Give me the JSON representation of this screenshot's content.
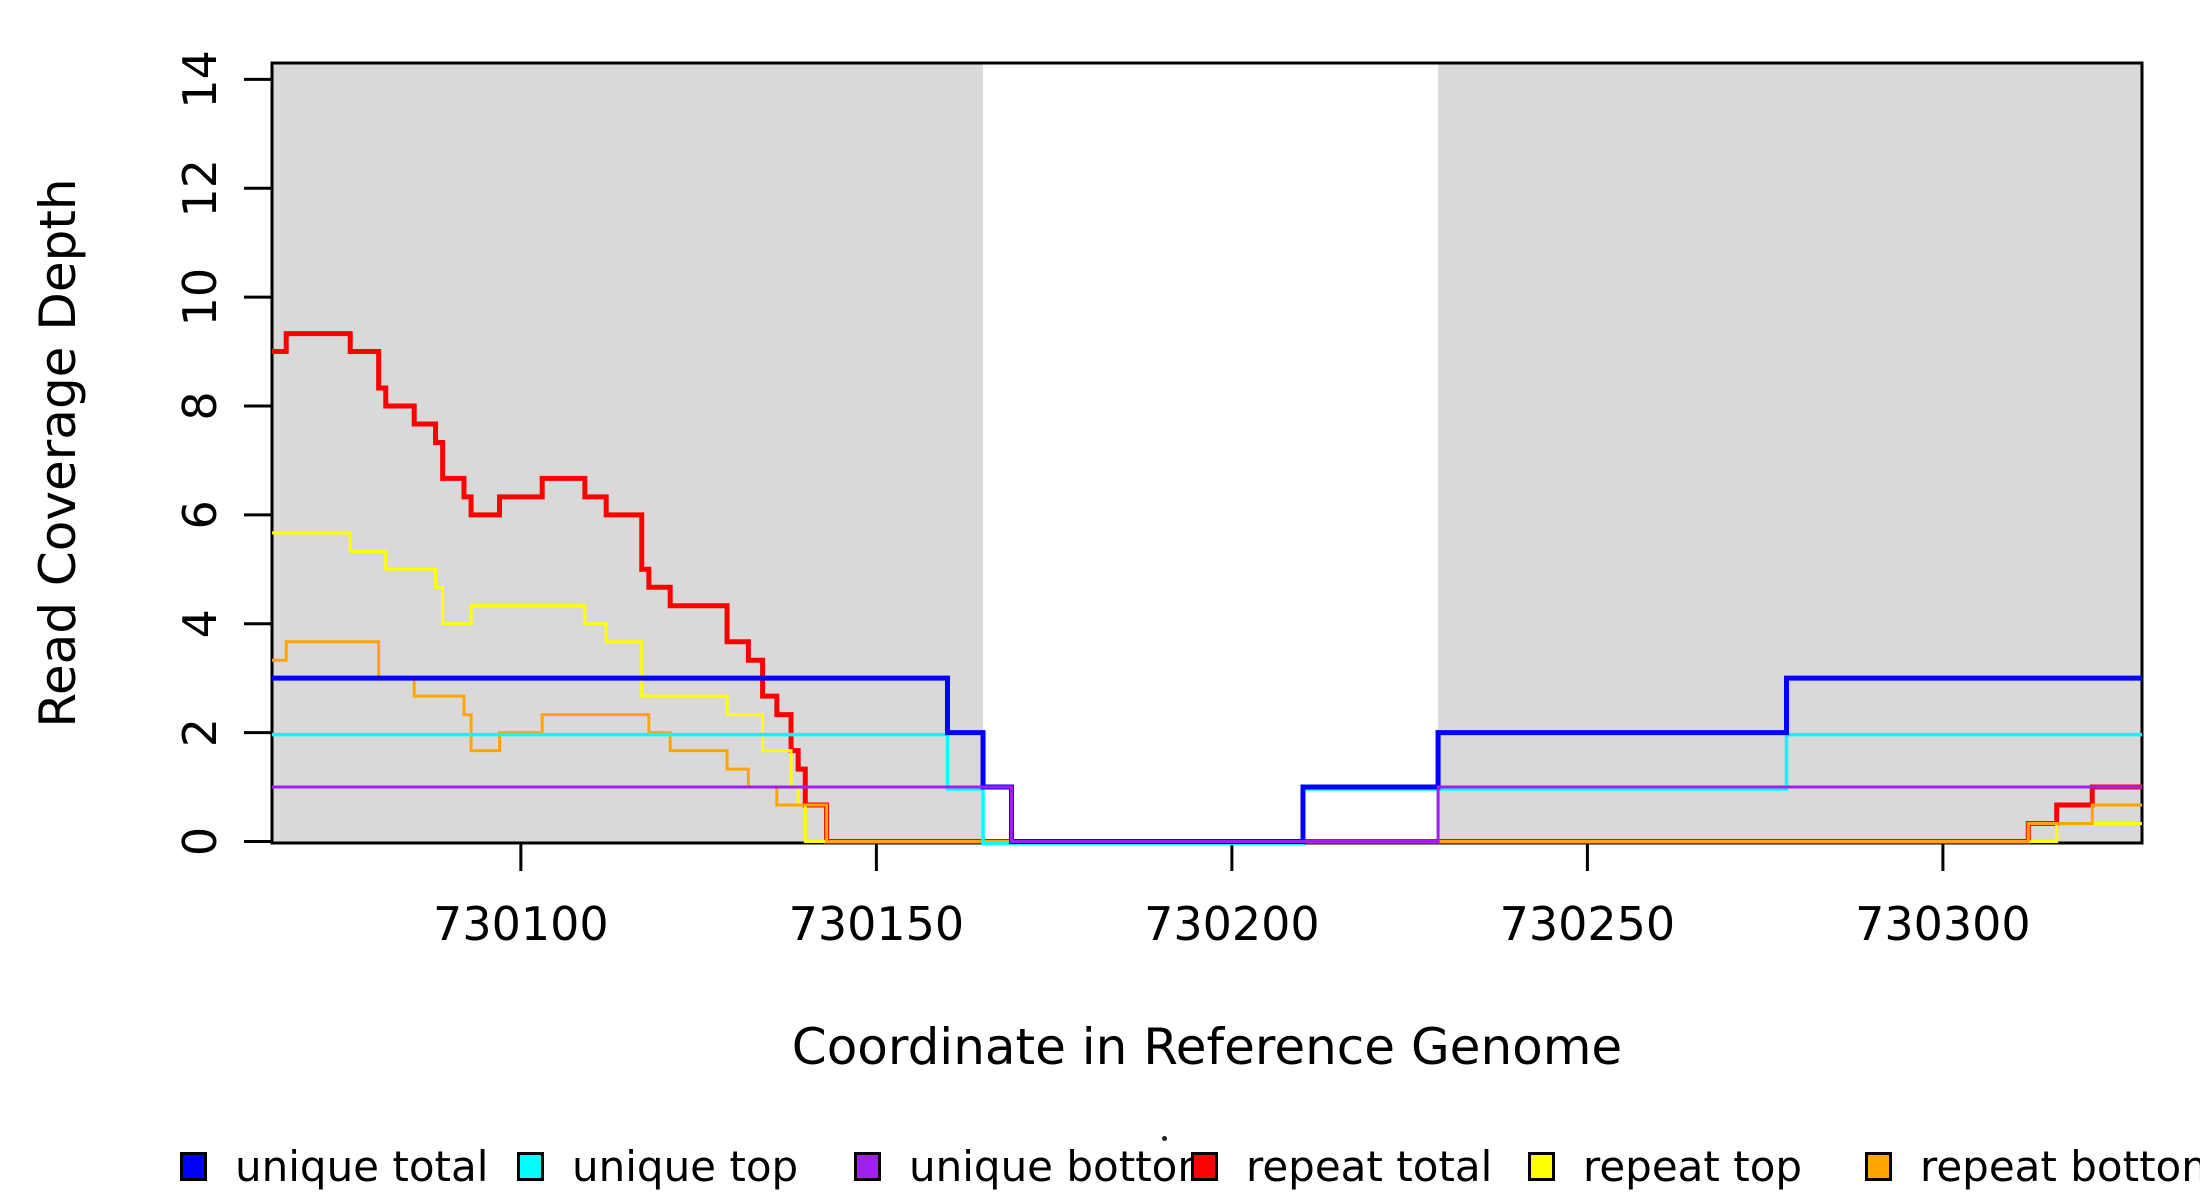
{
  "chart_data": {
    "type": "line",
    "subtype": "step-coverage-plot",
    "title": "",
    "xlabel": "Coordinate in Reference Genome",
    "ylabel": "Read Coverage Depth",
    "xlim": [
      730065,
      730328
    ],
    "ylim": [
      0,
      14.3
    ],
    "x_ticks": [
      {
        "value": 730100,
        "label": "730100"
      },
      {
        "value": 730150,
        "label": "730150"
      },
      {
        "value": 730200,
        "label": "730200"
      },
      {
        "value": 730250,
        "label": "730250"
      },
      {
        "value": 730300,
        "label": "730300"
      }
    ],
    "y_ticks": [
      {
        "value": 0,
        "label": "0"
      },
      {
        "value": 2,
        "label": "2"
      },
      {
        "value": 4,
        "label": "4"
      },
      {
        "value": 6,
        "label": "6"
      },
      {
        "value": 8,
        "label": "8"
      },
      {
        "value": 10,
        "label": "10"
      },
      {
        "value": 12,
        "label": "12"
      },
      {
        "value": 14,
        "label": "14"
      }
    ],
    "grid": "off",
    "shade_color": "#D9D9D9",
    "shaded_regions": [
      {
        "x_start": 730065,
        "x_end": 730165
      },
      {
        "x_start": 730229,
        "x_end": 730328
      }
    ],
    "series": [
      {
        "name": "repeat total",
        "color": "#FF0000",
        "line_width": 5,
        "steps": [
          [
            730065,
            9
          ],
          [
            730067,
            9.33
          ],
          [
            730076,
            9
          ],
          [
            730080,
            8.33
          ],
          [
            730081,
            8
          ],
          [
            730085,
            7.67
          ],
          [
            730088,
            7.33
          ],
          [
            730089,
            6.67
          ],
          [
            730092,
            6.33
          ],
          [
            730093,
            6
          ],
          [
            730097,
            6.33
          ],
          [
            730103,
            6.67
          ],
          [
            730109,
            6.33
          ],
          [
            730112,
            6
          ],
          [
            730117,
            5
          ],
          [
            730118,
            4.67
          ],
          [
            730121,
            4.33
          ],
          [
            730129,
            3.67
          ],
          [
            730132,
            3.33
          ],
          [
            730134,
            2.67
          ],
          [
            730136,
            2.33
          ],
          [
            730138,
            1.67
          ],
          [
            730139,
            1.33
          ],
          [
            730140,
            0.67
          ],
          [
            730143,
            0
          ],
          [
            730312,
            0.33
          ],
          [
            730316,
            0.67
          ],
          [
            730321,
            1
          ]
        ]
      },
      {
        "name": "repeat top",
        "color": "#FFFF00",
        "line_width": 3,
        "steps": [
          [
            730065,
            5.67
          ],
          [
            730076,
            5.33
          ],
          [
            730081,
            5
          ],
          [
            730088,
            4.67
          ],
          [
            730089,
            4
          ],
          [
            730093,
            4.33
          ],
          [
            730109,
            4
          ],
          [
            730112,
            3.67
          ],
          [
            730117,
            2.67
          ],
          [
            730129,
            2.33
          ],
          [
            730134,
            1.67
          ],
          [
            730138,
            1
          ],
          [
            730139,
            0.67
          ],
          [
            730140,
            0
          ],
          [
            730316,
            0.33
          ]
        ]
      },
      {
        "name": "repeat bottom",
        "color": "#FFA500",
        "line_width": 3,
        "steps": [
          [
            730065,
            3.33
          ],
          [
            730067,
            3.67
          ],
          [
            730080,
            3
          ],
          [
            730085,
            2.67
          ],
          [
            730092,
            2.33
          ],
          [
            730093,
            1.67
          ],
          [
            730097,
            2
          ],
          [
            730103,
            2.33
          ],
          [
            730118,
            2
          ],
          [
            730121,
            1.67
          ],
          [
            730129,
            1.33
          ],
          [
            730132,
            1
          ],
          [
            730136,
            0.67
          ],
          [
            730143,
            0
          ],
          [
            730312,
            0.33
          ],
          [
            730321,
            0.67
          ]
        ]
      },
      {
        "name": "unique top",
        "color": "#00FFFF",
        "line_width": 3.5,
        "steps": [
          [
            730065,
            2
          ],
          [
            730160,
            1
          ],
          [
            730165,
            0
          ],
          [
            730210,
            1
          ],
          [
            730278,
            2
          ]
        ]
      },
      {
        "name": "unique total",
        "color": "#0000FF",
        "line_width": 5,
        "steps": [
          [
            730065,
            3
          ],
          [
            730160,
            2
          ],
          [
            730165,
            1
          ],
          [
            730169,
            0
          ],
          [
            730210,
            1
          ],
          [
            730229,
            2
          ],
          [
            730278,
            3
          ]
        ]
      },
      {
        "name": "unique bottom",
        "color": "#A020F0",
        "line_width": 3,
        "steps": [
          [
            730065,
            1
          ],
          [
            730169,
            0
          ],
          [
            730229,
            1
          ]
        ]
      }
    ],
    "legend": {
      "position": "bottom",
      "items": [
        {
          "label": "unique total",
          "color": "#0000FF"
        },
        {
          "label": "unique top",
          "color": "#00FFFF"
        },
        {
          "label": "unique bottom",
          "color": "#A020F0"
        },
        {
          "label": "repeat total",
          "color": "#FF0000"
        },
        {
          "label": "repeat top",
          "color": "#FFFF00"
        },
        {
          "label": "repeat bottom",
          "color": "#FFA500"
        }
      ]
    }
  }
}
